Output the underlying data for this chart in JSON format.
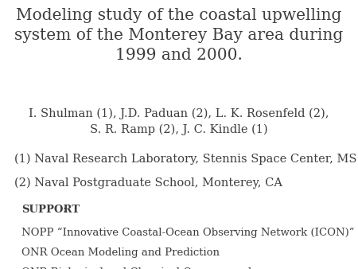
{
  "bg_color": "#ffffff",
  "title_line1": "Modeling study of the coastal upwelling",
  "title_line2": "system of the Monterey Bay area during",
  "title_line3": "1999 and 2000.",
  "authors_line1": "I. Shulman (1), J.D. Paduan (2), L. K. Rosenfeld (2),",
  "authors_line2": "S. R. Ramp (2), J. C. Kindle (1)",
  "affil1": "(1) Naval Research Laboratory, Stennis Space Center, MS",
  "affil2": "(2) Naval Postgraduate School, Monterey, CA",
  "support_label": "SUPPORT",
  "support_colon": ":",
  "support1": "NOPP “Innovative Coastal-Ocean Observing Network (ICON)”",
  "support2": "ONR Ocean Modeling and Prediction",
  "support3": "ONR Biological and Chemical Oceanography",
  "text_color": "#3d3d3d",
  "title_fontsize": 14.5,
  "authors_fontsize": 10.5,
  "affil_fontsize": 10.5,
  "support_fontsize": 9.5
}
